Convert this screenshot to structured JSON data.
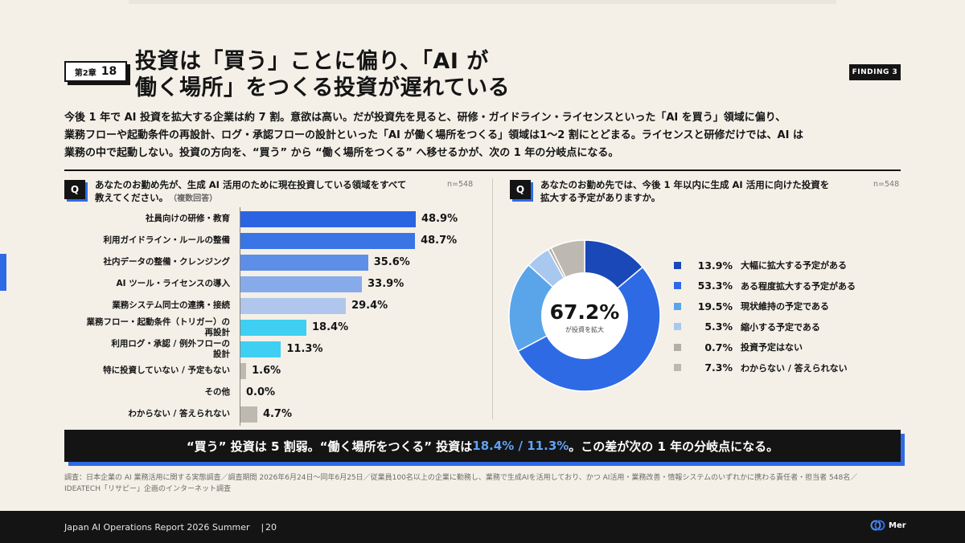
{
  "header": {
    "chapter_label": "第2章",
    "chapter_num": "18",
    "title_line1": "投資は「買う」ことに偏り、「AI が",
    "title_line2": "働く場所」をつくる投資が遅れている",
    "finding": "FINDING 3"
  },
  "lead": {
    "line1": "今後 1 年で AI 投資を拡大する企業は約 7 割。意欲は高い。だが投資先を見ると、研修・ガイドライン・ライセンスといった「AI を買う」領域に偏り、",
    "line2": "業務フローや起動条件の再設計、ログ・承認フローの設計といった「AI が働く場所をつくる」領域は1〜2 割にとどまる。ライセンスと研修だけでは、AI は",
    "line3": "業務の中で起動しない。投資の方向を、“買う” から “働く場所をつくる” へ移せるかが、次の 1 年の分岐点になる。"
  },
  "left_panel": {
    "q_badge": "Q",
    "question_line1": "あなたのお勤め先が、生成 AI 活用のために現在投資している領域をすべて",
    "question_line2": "教えてください。",
    "question_note": "（複数回答）",
    "n": "n=548"
  },
  "right_panel": {
    "q_badge": "Q",
    "question_line1": "あなたのお勤め先では、今後 1 年以内に生成 AI 活用に向けた投資を",
    "question_line2": "拡大する予定がありますか。",
    "n": "n=548",
    "center_value": "67.2%",
    "center_caption": "が投資を拡大"
  },
  "chart_data": [
    {
      "type": "bar",
      "orientation": "horizontal",
      "unit": "%",
      "categories": [
        "社員向けの研修・教育",
        "利用ガイドライン・ルールの整備",
        "社内データの整備・クレンジング",
        "AI ツール・ライセンスの導入",
        "業務システム同士の連携・接続",
        "業務フロー・起動条件（トリガー）の再設計",
        "利用ログ・承認 / 例外フローの設計",
        "特に投資していない / 予定もない",
        "その他",
        "わからない / 答えられない"
      ],
      "values": [
        48.9,
        48.7,
        35.6,
        33.9,
        29.4,
        18.4,
        11.3,
        1.6,
        0.0,
        4.7
      ],
      "value_labels": [
        "48.9%",
        "48.7%",
        "35.6%",
        "33.9%",
        "29.4%",
        "18.4%",
        "11.3%",
        "1.6%",
        "0.0%",
        "4.7%"
      ],
      "colors": [
        "#2b64e3",
        "#3a75e6",
        "#5d8fe8",
        "#87aaea",
        "#b0c6ec",
        "#3fcff2",
        "#3fcff2",
        "#bdb8b0",
        "#bdb8b0",
        "#bdb8b0"
      ],
      "xlim": [
        0,
        50
      ],
      "grid": false
    },
    {
      "type": "pie",
      "style": "donut",
      "unit": "%",
      "labels": [
        "大幅に拡大する予定がある",
        "ある程度拡大する予定がある",
        "現状維持の予定である",
        "縮小する予定である",
        "投資予定はない",
        "わからない / 答えられない"
      ],
      "values": [
        13.9,
        53.3,
        19.5,
        5.3,
        0.7,
        7.3
      ],
      "value_labels": [
        "13.9%",
        "53.3%",
        "19.5%",
        "5.3%",
        "0.7%",
        "7.3%"
      ],
      "colors": [
        "#1a48b8",
        "#2f6ae5",
        "#5aa5ea",
        "#a9c8f0",
        "#b3aea6",
        "#bdb8b0"
      ],
      "legend": "right"
    }
  ],
  "callout": {
    "part1": "“買う” 投資は 5 割弱。“働く場所をつくる” 投資は ",
    "highlight": "18.4% / 11.3%",
    "part2": "。この差が次の 1 年の分岐点になる。"
  },
  "source": {
    "line1": "調査：日本企業の AI 業務活用に関する実態調査／調査期間 2026年6月24日〜同年6月25日／従業員100名以上の企業に勤務し、業務で生成AIを活用しており、かつ AI活用・業務改善・情報システムのいずれかに携わる責任者・担当者 548名／",
    "line2": "IDEATECH「リサピー」企画のインターネット調査"
  },
  "footer": {
    "report": "Japan AI Operations Report 2026 Summer",
    "sep": "|",
    "page": "20",
    "logo_text": "Mer"
  }
}
